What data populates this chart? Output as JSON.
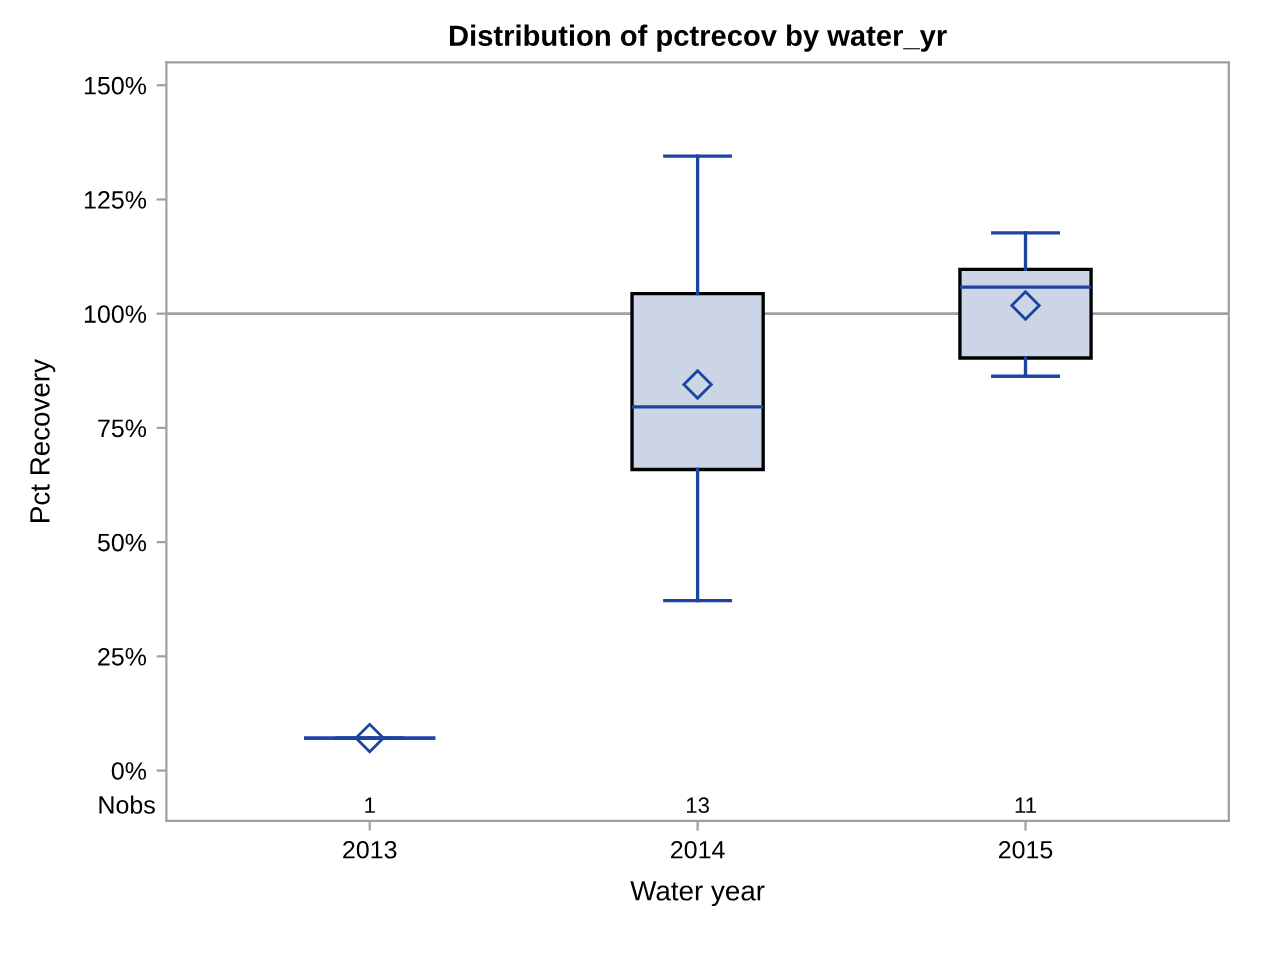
{
  "chart_data": {
    "type": "box",
    "title": "Distribution of pctrecov by water_yr",
    "xlabel": "Water year",
    "ylabel": "Pct Recovery",
    "categories": [
      "2013",
      "2014",
      "2015"
    ],
    "boxes": [
      {
        "low": 7.1,
        "q1": 7.1,
        "median": 7.1,
        "q3": 7.1,
        "high": 7.1,
        "mean": 7.1
      },
      {
        "low": 37.2,
        "q1": 65.9,
        "median": 79.6,
        "q3": 104.4,
        "high": 134.5,
        "mean": 84.5
      },
      {
        "low": 86.3,
        "q1": 90.3,
        "median": 105.8,
        "q3": 109.7,
        "high": 117.7,
        "mean": 101.8
      }
    ],
    "colors": [
      "#1c44a0",
      "#cbd5e5",
      "#cbd5e5"
    ],
    "ylim": [
      -11,
      155
    ],
    "yticks": [
      {
        "value": 0,
        "label": "0%"
      },
      {
        "value": 25,
        "label": "25%"
      },
      {
        "value": 50,
        "label": "50%"
      },
      {
        "value": 75,
        "label": "75%"
      },
      {
        "value": 100,
        "label": "100%"
      },
      {
        "value": 125,
        "label": "125%"
      },
      {
        "value": 150,
        "label": "150%"
      }
    ],
    "ref_lines": [
      {
        "axis": "y",
        "value": 100,
        "color": "#a0a0a0"
      }
    ],
    "annotations": [
      "Nobs",
      "1",
      "13",
      "11"
    ],
    "grid": false,
    "legend": false
  }
}
